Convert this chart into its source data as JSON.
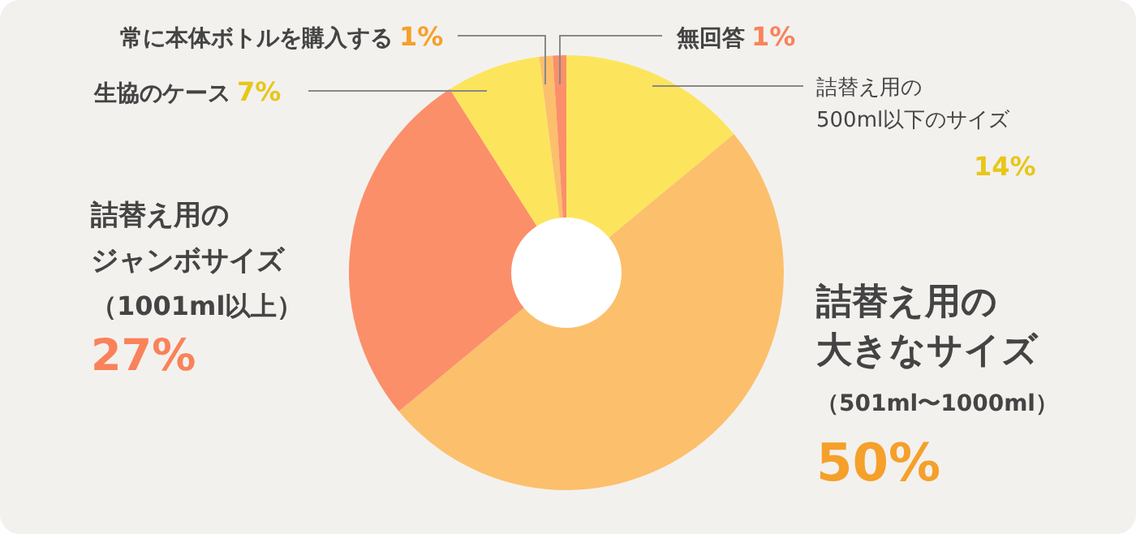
{
  "chart_data": {
    "type": "donut",
    "categories": [
      "詰替え用の500ml以下のサイズ",
      "詰替え用の大きなサイズ（501ml〜1000ml）",
      "詰替え用のジャンボサイズ（1001ml以上）",
      "生協のケース",
      "常に本体ボトルを購入する",
      "無回答"
    ],
    "values": [
      14,
      50,
      27,
      7,
      1,
      1
    ],
    "colors": [
      "#fce55c",
      "#fcbf6c",
      "#fb8f69",
      "#fce55c",
      "#fcbf6c",
      "#fb8f69"
    ],
    "value_labels": [
      "14%",
      "50%",
      "27%",
      "7%",
      "1%",
      "1%"
    ]
  }
}
